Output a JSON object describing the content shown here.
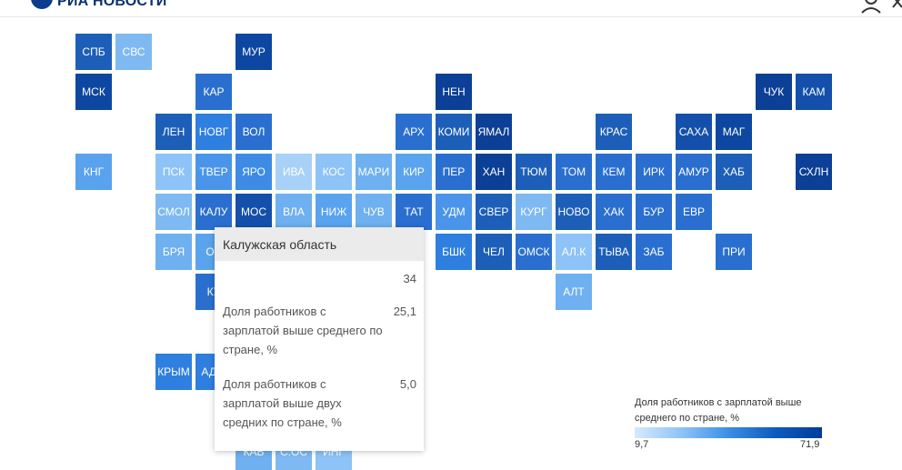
{
  "header": {
    "logo_text": "РИА НОВОСТИ"
  },
  "map": {
    "tiles": [
      {
        "label": "СПБ",
        "color": "#1d5fb8"
      },
      {
        "label": "СВС",
        "color": "#7fb9f2"
      },
      {
        "label": "МУР",
        "color": "#0d47a1"
      },
      {
        "label": "МСК",
        "color": "#0d47a1"
      },
      {
        "label": "КАР",
        "color": "#2a6fd0"
      },
      {
        "label": "НЕН",
        "color": "#0c3f96"
      },
      {
        "label": "ЧУК",
        "color": "#0c3f96"
      },
      {
        "label": "КАМ",
        "color": "#1450ab"
      },
      {
        "label": "ЛЕН",
        "color": "#1d5fb8"
      },
      {
        "label": "НОВГ",
        "color": "#2f7fe0"
      },
      {
        "label": "ВОЛ",
        "color": "#2a6fd0"
      },
      {
        "label": "АРХ",
        "color": "#2a6fd0"
      },
      {
        "label": "КОМИ",
        "color": "#1d5fb8"
      },
      {
        "label": "ЯМАЛ",
        "color": "#0c3f96"
      },
      {
        "label": "КРАС",
        "color": "#1d5fb8"
      },
      {
        "label": "САХА",
        "color": "#1450ab"
      },
      {
        "label": "МАГ",
        "color": "#0d47a1"
      },
      {
        "label": "КНГ",
        "color": "#58a2ee"
      },
      {
        "label": "ПСК",
        "color": "#8dc3f6"
      },
      {
        "label": "ТВЕР",
        "color": "#4a95ea"
      },
      {
        "label": "ЯРО",
        "color": "#3e8be6"
      },
      {
        "label": "ИВА",
        "color": "#a8d1f8"
      },
      {
        "label": "КОС",
        "color": "#8dc3f6"
      },
      {
        "label": "МАРИ",
        "color": "#6fb0f0"
      },
      {
        "label": "КИР",
        "color": "#5aa3ee"
      },
      {
        "label": "ПЕР",
        "color": "#2a6fd0"
      },
      {
        "label": "ХАН",
        "color": "#0c3f96"
      },
      {
        "label": "ТЮМ",
        "color": "#1d5fb8"
      },
      {
        "label": "ТОМ",
        "color": "#2a6fd0"
      },
      {
        "label": "КЕМ",
        "color": "#2a6fd0"
      },
      {
        "label": "ИРК",
        "color": "#2a6fd0"
      },
      {
        "label": "АМУР",
        "color": "#2a6fd0"
      },
      {
        "label": "ХАБ",
        "color": "#1d5fb8"
      },
      {
        "label": "СХЛН",
        "color": "#0c3f96"
      },
      {
        "label": "СМОЛ",
        "color": "#7fb9f2"
      },
      {
        "label": "КАЛУ",
        "color": "#2a6fd0"
      },
      {
        "label": "МОС",
        "color": "#1450ab"
      },
      {
        "label": "ВЛА",
        "color": "#6fb0f0"
      },
      {
        "label": "НИЖ",
        "color": "#5aa3ee"
      },
      {
        "label": "ЧУВ",
        "color": "#6fb0f0"
      },
      {
        "label": "ТАТ",
        "color": "#2a6fd0"
      },
      {
        "label": "УДМ",
        "color": "#4a95ea"
      },
      {
        "label": "СВЕР",
        "color": "#1d5fb8"
      },
      {
        "label": "КУРГ",
        "color": "#7fb9f2"
      },
      {
        "label": "НОВО",
        "color": "#1d5fb8"
      },
      {
        "label": "ХАК",
        "color": "#2a6fd0"
      },
      {
        "label": "БУР",
        "color": "#2a6fd0"
      },
      {
        "label": "ЕВР",
        "color": "#2a6fd0"
      },
      {
        "label": "БРЯ",
        "color": "#6fb0f0"
      },
      {
        "label": "ОР",
        "color": "#5aa3ee"
      },
      {
        "label": "БШК",
        "color": "#2f7fe0"
      },
      {
        "label": "ЧЕЛ",
        "color": "#1d5fb8"
      },
      {
        "label": "ОМСК",
        "color": "#2a6fd0"
      },
      {
        "label": "АЛ.К",
        "color": "#8dc3f6"
      },
      {
        "label": "ТЫВА",
        "color": "#1d5fb8"
      },
      {
        "label": "ЗАБ",
        "color": "#2a6fd0"
      },
      {
        "label": "ПРИ",
        "color": "#2a6fd0"
      },
      {
        "label": "КУ",
        "color": "#2a6fd0"
      },
      {
        "label": "АЛТ",
        "color": "#6fb0f0"
      },
      {
        "label": "КРЫМ",
        "color": "#2f7fe0"
      },
      {
        "label": "АДЫ",
        "color": "#2f7fe0"
      },
      {
        "label": "КАБ",
        "color": "#6fb0f0"
      },
      {
        "label": "С.ОС",
        "color": "#7fb9f2"
      },
      {
        "label": "ИНГ",
        "color": "#8dc3f6"
      }
    ]
  },
  "tooltip": {
    "title": "Калужская область",
    "top_value": "34",
    "rows": [
      {
        "label": "Доля работников с зарплатой выше среднего по стране, %",
        "value": "25,1"
      },
      {
        "label": "Доля работников с зарплатой выше двух средних по стране, %",
        "value": "5,0"
      }
    ]
  },
  "legend": {
    "title": "Доля работников с зарплатой выше среднего по стране, %",
    "min": "9,7",
    "max": "71,9"
  }
}
